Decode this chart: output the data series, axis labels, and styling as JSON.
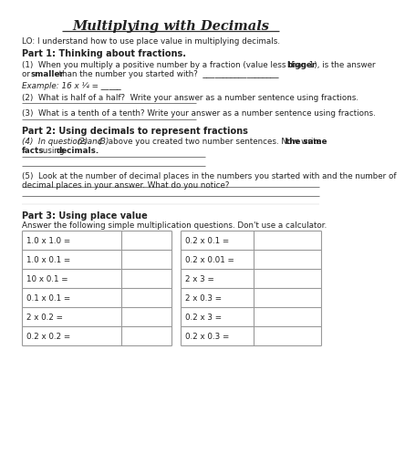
{
  "title": "Multiplying with Decimals",
  "lo": "LO: I understand how to use place value in multiplying decimals.",
  "part1_heading": "Part 1: Thinking about fractions.",
  "q1_line1": "(1)  When you multiply a positive number by a fraction (value less than 1), is the answer ",
  "q1_bold1": "bigger",
  "q1_line2_a": "or ",
  "q1_bold2": "smaller",
  "q1_line2_b": " than the number you started with?  ___________________",
  "q1_example": "Example: 16 x ¼ = _____",
  "q2": "(2)  What is half of a half?  Write your answer as a number sentence using fractions.",
  "q3": "(3)  What is a tenth of a tenth? Write your answer as a number sentence using fractions.",
  "part2_heading": "Part 2: Using decimals to represent fractions",
  "q4_line1_a": "(4)  In questions ",
  "q4_line1_b": "(2)",
  "q4_line1_c": " and ",
  "q4_line1_d": "(3)",
  "q4_line1_e": " above you created two number sentences. Now write ",
  "q4_line1_bold": "the same",
  "q4_line2_bold1": "facts",
  "q4_line2_a": " using ",
  "q4_line2_bold2": "decimals.",
  "q5_line1": "(5)  Look at the number of decimal places in the numbers you started with and the number of",
  "q5_line2": "decimal places in your answer. What do you notice?",
  "part3_heading": "Part 3: Using place value",
  "part3_sub": "Answer the following simple multiplication questions. Don't use a calculator.",
  "left_table": [
    "1.0 x 1.0 =",
    "1.0 x 0.1 =",
    "10 x 0.1 =",
    "0.1 x 0.1 =",
    "2 x 0.2 =",
    "0.2 x 0.2 ="
  ],
  "right_table": [
    "0.2 x 0.1 =",
    "0.2 x 0.01 =",
    "2 x 3 =",
    "2 x 0.3 =",
    "0.2 x 3 =",
    "0.2 x 0.3 ="
  ],
  "bg_color": "#ffffff",
  "text_color": "#222222",
  "table_border_color": "#999999",
  "title_size": 10.5,
  "heading_size": 7.0,
  "body_size": 6.3
}
